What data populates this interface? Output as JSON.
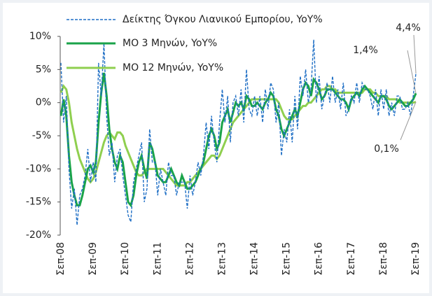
{
  "chart_data": {
    "type": "line",
    "categories": [
      "Σεπ-08",
      null,
      null,
      null,
      null,
      null,
      null,
      null,
      null,
      null,
      null,
      null,
      "Σεπ-09",
      null,
      null,
      null,
      null,
      null,
      null,
      null,
      null,
      null,
      null,
      null,
      "Σεπ-10",
      null,
      null,
      null,
      null,
      null,
      null,
      null,
      null,
      null,
      null,
      null,
      "Σεπ-11",
      null,
      null,
      null,
      null,
      null,
      null,
      null,
      null,
      null,
      null,
      null,
      "Σεπ-12",
      null,
      null,
      null,
      null,
      null,
      null,
      null,
      null,
      null,
      null,
      null,
      "Σεπ-13",
      null,
      null,
      null,
      null,
      null,
      null,
      null,
      null,
      null,
      null,
      null,
      "Σεπ-14",
      null,
      null,
      null,
      null,
      null,
      null,
      null,
      null,
      null,
      null,
      null,
      "Σεπ-15",
      null,
      null,
      null,
      null,
      null,
      null,
      null,
      null,
      null,
      null,
      null,
      "Σεπ-16",
      null,
      null,
      null,
      null,
      null,
      null,
      null,
      null,
      null,
      null,
      null,
      "Σεπ-17",
      null,
      null,
      null,
      null,
      null,
      null,
      null,
      null,
      null,
      null,
      null,
      "Σεπ-18",
      null,
      null,
      null,
      null,
      null,
      null,
      null,
      null,
      null,
      null,
      null,
      "Σεπ-19"
    ],
    "series": [
      {
        "name": "Δείκτης Όγκου Λιανικού Εμπορίου, YoY%",
        "color": "#1f6fc5",
        "dash": true,
        "last_label": "4,4%",
        "values": [
          6,
          -3,
          1,
          -10,
          -16,
          -13,
          -18.5,
          -14,
          -13,
          -11,
          -7,
          -12,
          -9,
          -12,
          6,
          1,
          9,
          -2,
          -8,
          -6,
          -12,
          -8,
          -7,
          -11,
          -14,
          -17,
          -18,
          -12,
          -10,
          -8,
          -6,
          -15,
          -13,
          -4,
          -9,
          -9,
          -14,
          -10,
          -12,
          -14,
          -9,
          -11,
          -11,
          -14,
          -12,
          -12,
          -12,
          -16,
          -11,
          -14,
          -12,
          -9,
          -11,
          -8,
          -3,
          -7,
          -2,
          -6,
          -9,
          -3,
          2,
          -3,
          1,
          -6,
          0,
          1,
          -2,
          2,
          -3,
          5,
          -1,
          -2,
          1,
          -2,
          1,
          -3,
          2,
          -1,
          3,
          2,
          -3,
          0,
          -8,
          -4,
          -6,
          -1,
          -6,
          1,
          -4,
          4,
          1,
          5,
          0,
          2,
          9.5,
          0,
          4,
          -1,
          1,
          3,
          0,
          4,
          0,
          2,
          -1,
          3,
          -2,
          -1,
          1,
          0,
          3,
          0,
          3,
          2,
          2,
          1,
          -1,
          2,
          -2,
          2,
          -1,
          2,
          -2,
          0,
          -2,
          1,
          1,
          -1,
          -1,
          0,
          -2,
          1,
          4.4
        ]
      },
      {
        "name": "ΜΟ 3 Μηνών, YoY%",
        "color": "#1aa34a",
        "dash": false,
        "last_label": "1,4%",
        "values": [
          -2,
          0.5,
          -2,
          -8,
          -12,
          -14,
          -15.5,
          -15.5,
          -14,
          -12,
          -10,
          -9.5,
          -10.5,
          -9,
          -3,
          1.5,
          4.5,
          1,
          -4,
          -7,
          -9,
          -10,
          -8,
          -9,
          -12,
          -15,
          -15.5,
          -14,
          -11,
          -9,
          -8,
          -10,
          -11.5,
          -6,
          -7,
          -9,
          -11,
          -11.5,
          -12,
          -12,
          -11,
          -10,
          -11,
          -12,
          -12.5,
          -11,
          -12,
          -13,
          -13,
          -12.5,
          -12,
          -11,
          -10,
          -9,
          -7,
          -5,
          -4,
          -5,
          -7,
          -6,
          -3,
          -2,
          -1,
          -3,
          -1.5,
          0,
          -0.5,
          0,
          -1,
          1,
          0.5,
          -0.5,
          -0.5,
          0,
          -0.5,
          -1,
          0,
          0.5,
          1.5,
          1,
          -1,
          -2,
          -4,
          -5,
          -4,
          -3,
          -2,
          -1,
          -2,
          0,
          2,
          3,
          2.5,
          1,
          3.5,
          3,
          2,
          0.5,
          1,
          2,
          2,
          2,
          1.5,
          1,
          0.5,
          0.5,
          0,
          -1,
          0.5,
          1,
          1.5,
          1,
          2,
          2.5,
          2,
          1.5,
          1,
          0.5,
          0,
          1,
          1,
          0.5,
          -0.5,
          -1,
          -0.5,
          0,
          0.5,
          0,
          -0.5,
          -0.5,
          0,
          0.5,
          1.4
        ]
      },
      {
        "name": "ΜΟ 12 Μηνών, YoY%",
        "color": "#8fcf4f",
        "dash": false,
        "last_label": "0,1%",
        "values": [
          1.5,
          2.5,
          2,
          0,
          -3,
          -5,
          -7,
          -8.5,
          -9.5,
          -10.5,
          -11.5,
          -12,
          -11.5,
          -10.5,
          -9,
          -7.5,
          -6,
          -5,
          -4.5,
          -5,
          -5.5,
          -4.5,
          -4.5,
          -5,
          -6.5,
          -7.5,
          -8.5,
          -9.5,
          -10.5,
          -11,
          -11,
          -10.5,
          -10,
          -10,
          -10,
          -10,
          -10,
          -10,
          -10,
          -10.5,
          -11,
          -11.5,
          -12,
          -12.5,
          -12.5,
          -12.5,
          -12.5,
          -12,
          -12,
          -11.5,
          -11,
          -10.5,
          -10,
          -9.5,
          -9,
          -8.5,
          -8,
          -8,
          -8.5,
          -8,
          -7,
          -6,
          -5,
          -4,
          -3,
          -2.5,
          -2,
          -1.5,
          -1,
          -0.5,
          0,
          0.5,
          0.5,
          0.5,
          0.5,
          0.5,
          0.5,
          0.5,
          0.5,
          0.5,
          0.5,
          0,
          -1,
          -2,
          -2.5,
          -2.5,
          -2.5,
          -2,
          -1.5,
          -1,
          -0.5,
          -0.5,
          0,
          0,
          0.5,
          1,
          1.5,
          2,
          2,
          2.5,
          2.5,
          2,
          2,
          1.5,
          1.5,
          1.5,
          1.5,
          1.5,
          1.5,
          1.5,
          1.5,
          1.5,
          1.5,
          2,
          2,
          2,
          1.5,
          1.5,
          1,
          1,
          1,
          1,
          0.5,
          0.5,
          0.5,
          0.5,
          0,
          0,
          0,
          0,
          0,
          0,
          0.1
        ]
      }
    ],
    "ylim": [
      -20,
      10
    ],
    "yticks": [
      {
        "value": -20,
        "label": "-20%"
      },
      {
        "value": -15,
        "label": "-15%"
      },
      {
        "value": -10,
        "label": "-10%"
      },
      {
        "value": -5,
        "label": "-5%"
      },
      {
        "value": 0,
        "label": "0%"
      },
      {
        "value": 5,
        "label": "5%"
      },
      {
        "value": 10,
        "label": "10%"
      }
    ],
    "grid": false
  }
}
